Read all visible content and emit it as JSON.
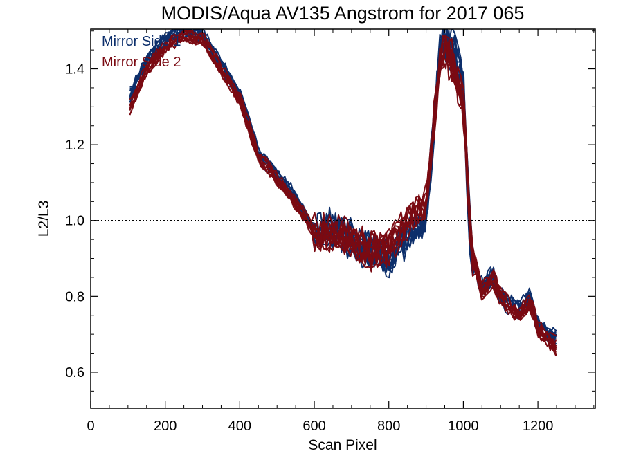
{
  "chart_data": {
    "type": "line",
    "title": "MODIS/Aqua AV135 Angstrom for 2017 065",
    "xlabel": "Scan Pixel",
    "ylabel": "L2/L3",
    "xlim": [
      0,
      1354
    ],
    "ylim": [
      0.505,
      1.505
    ],
    "xticks": [
      0,
      200,
      400,
      600,
      800,
      1000,
      1200
    ],
    "yticks": [
      0.6,
      0.8,
      1.0,
      1.2,
      1.4
    ],
    "xtick_labels": [
      "0",
      "200",
      "400",
      "600",
      "800",
      "1000",
      "1200"
    ],
    "ytick_labels": [
      "0.6",
      "0.8",
      "1.0",
      "1.2",
      "1.4"
    ],
    "reference_line": {
      "y": 1.0,
      "style": "dotted"
    },
    "grid": false,
    "legend_position": "top-left",
    "series_count_per_group": 10,
    "series": [
      {
        "name": "Mirror Side 1",
        "color": "#0d2f6b",
        "x": [
          105,
          150,
          200,
          250,
          300,
          350,
          400,
          450,
          500,
          550,
          600,
          650,
          700,
          750,
          800,
          850,
          900,
          940,
          970,
          1000,
          1020,
          1050,
          1080,
          1100,
          1150,
          1180,
          1200,
          1250
        ],
        "values": [
          1.33,
          1.42,
          1.48,
          1.5,
          1.49,
          1.41,
          1.33,
          1.18,
          1.12,
          1.06,
          0.97,
          0.98,
          0.95,
          0.92,
          0.9,
          0.96,
          1.0,
          1.48,
          1.45,
          1.35,
          0.92,
          0.82,
          0.86,
          0.8,
          0.76,
          0.8,
          0.72,
          0.69
        ]
      },
      {
        "name": "Mirror Side 2",
        "color": "#7a0a12",
        "x": [
          105,
          150,
          200,
          250,
          300,
          350,
          400,
          450,
          500,
          550,
          600,
          650,
          700,
          750,
          800,
          850,
          900,
          940,
          970,
          1000,
          1020,
          1050,
          1080,
          1100,
          1150,
          1180,
          1200,
          1250
        ],
        "values": [
          1.3,
          1.4,
          1.46,
          1.49,
          1.48,
          1.4,
          1.32,
          1.17,
          1.11,
          1.05,
          0.97,
          0.97,
          0.95,
          0.92,
          0.93,
          1.0,
          1.05,
          1.45,
          1.42,
          1.32,
          0.94,
          0.81,
          0.85,
          0.8,
          0.75,
          0.79,
          0.71,
          0.67
        ]
      }
    ]
  }
}
